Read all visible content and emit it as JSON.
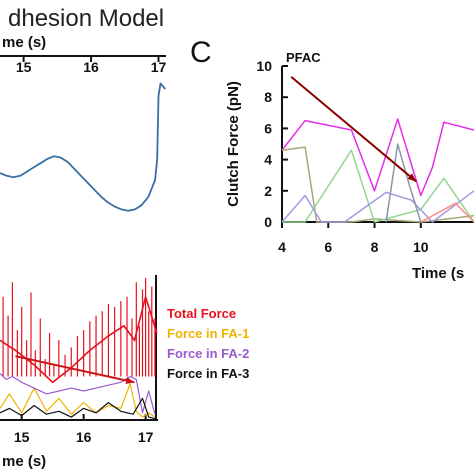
{
  "figure": {
    "title": "dhesion Model",
    "panel_letter": "C"
  },
  "chart_data": [
    {
      "id": "top-left",
      "type": "line",
      "title": "dhesion Model",
      "xlabel": "me (s)",
      "ylabel": "",
      "xlim": [
        14.65,
        17.2
      ],
      "ylim": [
        0,
        1
      ],
      "x_ticks": [
        15,
        16,
        17
      ],
      "x_tick_labels": [
        "15",
        "16",
        "17"
      ],
      "axis_position": "top",
      "colors": {
        "line": "#3a6ea5"
      },
      "series": [
        {
          "color": "#3a6ea5",
          "x": [
            14.65,
            14.75,
            14.85,
            14.95,
            15.05,
            15.15,
            15.25,
            15.35,
            15.45,
            15.55,
            15.65,
            15.75,
            15.85,
            15.95,
            16.05,
            16.15,
            16.25,
            16.35,
            16.45,
            16.55,
            16.65,
            16.75,
            16.85,
            16.95,
            16.98,
            17.0,
            17.03,
            17.1
          ],
          "y": [
            0.35,
            0.33,
            0.32,
            0.33,
            0.36,
            0.39,
            0.42,
            0.45,
            0.47,
            0.46,
            0.43,
            0.38,
            0.33,
            0.28,
            0.23,
            0.18,
            0.14,
            0.11,
            0.09,
            0.08,
            0.09,
            0.12,
            0.18,
            0.3,
            0.45,
            0.9,
            0.99,
            0.95
          ]
        }
      ]
    },
    {
      "id": "panel-c",
      "type": "line",
      "xlabel": "Time (s",
      "ylabel": "Clutch Force (pN)",
      "xlim": [
        4,
        12.3
      ],
      "ylim": [
        0,
        10
      ],
      "x_ticks": [
        4,
        6,
        8,
        10
      ],
      "x_tick_labels": [
        "4",
        "6",
        "8",
        "10"
      ],
      "y_ticks": [
        0,
        2,
        4,
        6,
        8,
        10
      ],
      "y_tick_labels": [
        "0",
        "2",
        "4",
        "6",
        "8",
        "10"
      ],
      "annotation": {
        "text": "PFAC",
        "color": "#8b0000",
        "from": [
          4.4,
          9.3
        ],
        "to": [
          9.8,
          2.6
        ]
      },
      "series": [
        {
          "color": "#e62ee6",
          "x": [
            4,
            5,
            7,
            8,
            9,
            10,
            10.5,
            11,
            12.3
          ],
          "y": [
            4.6,
            6.5,
            5.9,
            2.0,
            6.6,
            1.7,
            3.5,
            6.4,
            5.9
          ]
        },
        {
          "color": "#a8a878",
          "x": [
            4,
            5,
            5.5,
            7,
            8,
            10,
            12.3
          ],
          "y": [
            4.6,
            4.8,
            0.0,
            0.0,
            0.2,
            0.0,
            0.4
          ]
        },
        {
          "color": "#90d890",
          "x": [
            4,
            5,
            7,
            8,
            10,
            11,
            12.3
          ],
          "y": [
            0.0,
            0.0,
            4.6,
            0.0,
            0.8,
            2.8,
            0.0
          ]
        },
        {
          "color": "#a898e0",
          "x": [
            4,
            5,
            5.7,
            6.7,
            8.5,
            9.6,
            10.5,
            12.3
          ],
          "y": [
            0.0,
            1.7,
            0.0,
            0.0,
            1.9,
            1.4,
            0.0,
            2.0
          ]
        },
        {
          "color": "#8898a8",
          "x": [
            8.5,
            9.0,
            9.5,
            10
          ],
          "y": [
            0.0,
            5.0,
            2.4,
            0.0
          ]
        },
        {
          "color": "#ff8a8a",
          "x": [
            10,
            11.5,
            12.3
          ],
          "y": [
            0.0,
            1.2,
            0.0
          ]
        }
      ]
    },
    {
      "id": "bottom-left",
      "type": "line",
      "xlabel": "me (s)",
      "ylabel": "",
      "xlim": [
        14.65,
        17.2
      ],
      "ylim": [
        0,
        1
      ],
      "x_ticks": [
        15,
        16,
        17
      ],
      "x_tick_labels": [
        "15",
        "16",
        "17"
      ],
      "legend": {
        "position": "right",
        "entries": [
          {
            "label": "Total Force",
            "color": "#e8101e"
          },
          {
            "label": "Force in FA-1",
            "color": "#f0b400"
          },
          {
            "label": "Force in FA-2",
            "color": "#9a5bd0"
          },
          {
            "label": "Force in FA-3",
            "color": "#111111"
          }
        ]
      },
      "annotation": {
        "color": "#c81414",
        "from": [
          14.9,
          0.44
        ],
        "to": [
          16.82,
          0.26
        ]
      },
      "envelope": {
        "color": "#e8101e",
        "x": [
          14.65,
          14.9,
          15.2,
          15.5,
          15.8,
          16.1,
          16.4,
          16.65,
          16.82,
          17.0,
          17.18
        ],
        "y": [
          0.55,
          0.48,
          0.38,
          0.26,
          0.36,
          0.48,
          0.58,
          0.65,
          0.55,
          0.85,
          0.6
        ]
      },
      "spikes": {
        "color": "#e8101e",
        "x": [
          14.7,
          14.78,
          14.85,
          14.93,
          15.0,
          15.08,
          15.15,
          15.22,
          15.3,
          15.38,
          15.45,
          15.52,
          15.6,
          15.7,
          15.8,
          15.9,
          16.0,
          16.1,
          16.2,
          16.3,
          16.4,
          16.5,
          16.6,
          16.7,
          16.78,
          16.85,
          16.9,
          16.95,
          17.0,
          17.05,
          17.1,
          17.15
        ],
        "y": [
          0.85,
          0.72,
          0.95,
          0.62,
          0.78,
          0.55,
          0.88,
          0.48,
          0.7,
          0.42,
          0.6,
          0.38,
          0.55,
          0.45,
          0.5,
          0.58,
          0.62,
          0.68,
          0.72,
          0.75,
          0.8,
          0.78,
          0.82,
          0.85,
          0.7,
          0.95,
          0.65,
          0.9,
          0.98,
          0.75,
          0.92,
          0.7
        ]
      },
      "series": [
        {
          "color": "#f0b400",
          "x": [
            14.65,
            14.8,
            15.0,
            15.2,
            15.4,
            15.6,
            15.8,
            16.0,
            16.2,
            16.4,
            16.6,
            16.75,
            16.85,
            16.95,
            17.05,
            17.15
          ],
          "y": [
            0.08,
            0.18,
            0.05,
            0.22,
            0.06,
            0.15,
            0.04,
            0.12,
            0.05,
            0.1,
            0.08,
            0.25,
            0.06,
            0.02,
            0.05,
            0.02
          ]
        },
        {
          "color": "#9a5bd0",
          "x": [
            14.65,
            14.75,
            14.85,
            15.0,
            15.2,
            15.4,
            15.6,
            15.8,
            16.0,
            16.2,
            16.4,
            16.6,
            16.75,
            16.85,
            16.95,
            17.05,
            17.15
          ],
          "y": [
            0.32,
            0.28,
            0.3,
            0.26,
            0.22,
            0.18,
            0.2,
            0.22,
            0.2,
            0.22,
            0.24,
            0.26,
            0.3,
            0.28,
            0.05,
            0.2,
            0.04
          ]
        },
        {
          "color": "#111111",
          "x": [
            14.65,
            14.8,
            15.0,
            15.2,
            15.4,
            15.6,
            15.8,
            16.0,
            16.2,
            16.4,
            16.6,
            16.8,
            16.95,
            17.05,
            17.15
          ],
          "y": [
            0.05,
            0.08,
            0.03,
            0.1,
            0.04,
            0.06,
            0.02,
            0.08,
            0.05,
            0.12,
            0.06,
            0.04,
            0.15,
            0.02,
            0.01
          ]
        }
      ]
    }
  ]
}
